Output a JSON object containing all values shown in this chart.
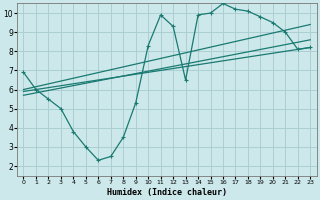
{
  "xlabel": "Humidex (Indice chaleur)",
  "xlim": [
    -0.5,
    23.5
  ],
  "ylim": [
    1.5,
    10.5
  ],
  "xticks": [
    0,
    1,
    2,
    3,
    4,
    5,
    6,
    7,
    8,
    9,
    10,
    11,
    12,
    13,
    14,
    15,
    16,
    17,
    18,
    19,
    20,
    21,
    22,
    23
  ],
  "yticks": [
    2,
    3,
    4,
    5,
    6,
    7,
    8,
    9,
    10
  ],
  "bg_color": "#cce8ea",
  "grid_color": "#aacfd2",
  "line_color": "#1a7a72",
  "line1_x": [
    0,
    1,
    2,
    3,
    4,
    5,
    6,
    7,
    8,
    9,
    10,
    11,
    12,
    13,
    14,
    15,
    16,
    17,
    18,
    19,
    20,
    21,
    22,
    23
  ],
  "line1_y": [
    6.9,
    6.0,
    5.5,
    5.0,
    3.8,
    3.0,
    2.3,
    2.5,
    3.5,
    5.3,
    8.3,
    9.9,
    9.3,
    6.5,
    9.9,
    10.0,
    10.5,
    10.2,
    10.1,
    9.8,
    9.5,
    9.0,
    8.1,
    8.2
  ],
  "line2_x": [
    0,
    23
  ],
  "line2_y": [
    5.9,
    8.2
  ],
  "line3_x": [
    0,
    23
  ],
  "line3_y": [
    5.7,
    8.6
  ],
  "line4_x": [
    0,
    23
  ],
  "line4_y": [
    6.0,
    9.4
  ]
}
